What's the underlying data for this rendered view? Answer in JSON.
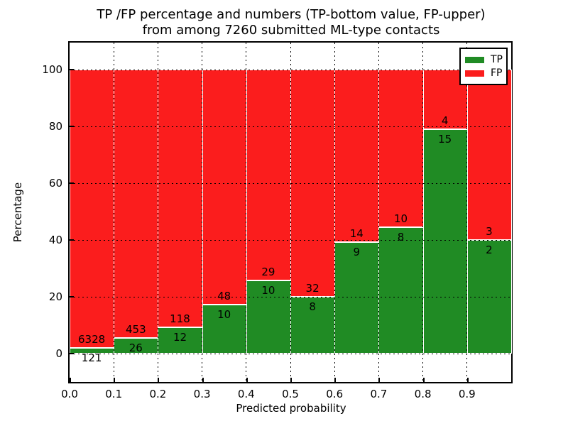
{
  "figure": {
    "title_line1": "TP /FP percentage and numbers (TP-bottom value, FP-upper)",
    "title_line2": "from among 7260 submitted ML-type contacts"
  },
  "chart_data": {
    "type": "bar",
    "stacked": true,
    "normalized_to_percent": true,
    "title": "TP /FP percentage and numbers (TP-bottom value, FP-upper)\nfrom among 7260 submitted ML-type contacts",
    "xlabel": "Predicted probability",
    "ylabel": "Percentage",
    "total_contacts": 7260,
    "xlim": [
      0.0,
      1.0
    ],
    "ylim": [
      -10,
      110
    ],
    "bin_width": 0.1,
    "categories": [
      0.0,
      0.1,
      0.2,
      0.3,
      0.4,
      0.5,
      0.6,
      0.7,
      0.8,
      0.9
    ],
    "x_ticklabels": [
      "0.0",
      "0.1",
      "0.2",
      "0.3",
      "0.4",
      "0.5",
      "0.6",
      "0.7",
      "0.8",
      "0.9"
    ],
    "y_ticklabels": [
      "0",
      "20",
      "40",
      "60",
      "80",
      "100"
    ],
    "y_gridline_values": [
      0,
      20,
      40,
      60,
      80,
      100
    ],
    "grid": {
      "on": true,
      "style": "dotted",
      "color": "#000000"
    },
    "bar_edge_color": "#ffffff",
    "series": [
      {
        "name": "TP",
        "color": "#208b24",
        "counts": [
          121,
          26,
          12,
          10,
          10,
          8,
          9,
          8,
          15,
          2
        ]
      },
      {
        "name": "FP",
        "color": "#fb1d1d",
        "counts": [
          6328,
          453,
          118,
          48,
          29,
          32,
          14,
          10,
          4,
          3
        ]
      }
    ],
    "bars": [
      {
        "bin": "0.0-0.1",
        "tp": 121,
        "fp": 6328,
        "tp_percent": 1.9
      },
      {
        "bin": "0.1-0.2",
        "tp": 26,
        "fp": 453,
        "tp_percent": 5.4
      },
      {
        "bin": "0.2-0.3",
        "tp": 12,
        "fp": 118,
        "tp_percent": 9.2
      },
      {
        "bin": "0.3-0.4",
        "tp": 10,
        "fp": 48,
        "tp_percent": 17.2
      },
      {
        "bin": "0.4-0.5",
        "tp": 10,
        "fp": 29,
        "tp_percent": 25.6
      },
      {
        "bin": "0.5-0.6",
        "tp": 8,
        "fp": 32,
        "tp_percent": 20.0
      },
      {
        "bin": "0.6-0.7",
        "tp": 9,
        "fp": 14,
        "tp_percent": 39.1
      },
      {
        "bin": "0.7-0.8",
        "tp": 8,
        "fp": 10,
        "tp_percent": 44.4
      },
      {
        "bin": "0.8-0.9",
        "tp": 15,
        "fp": 4,
        "tp_percent": 78.9
      },
      {
        "bin": "0.9-1.0",
        "tp": 2,
        "fp": 3,
        "tp_percent": 40.0
      }
    ],
    "legend": {
      "position": "upper right",
      "entries": [
        {
          "label": "TP",
          "color": "#208b24"
        },
        {
          "label": "FP",
          "color": "#fb1d1d"
        }
      ]
    }
  }
}
